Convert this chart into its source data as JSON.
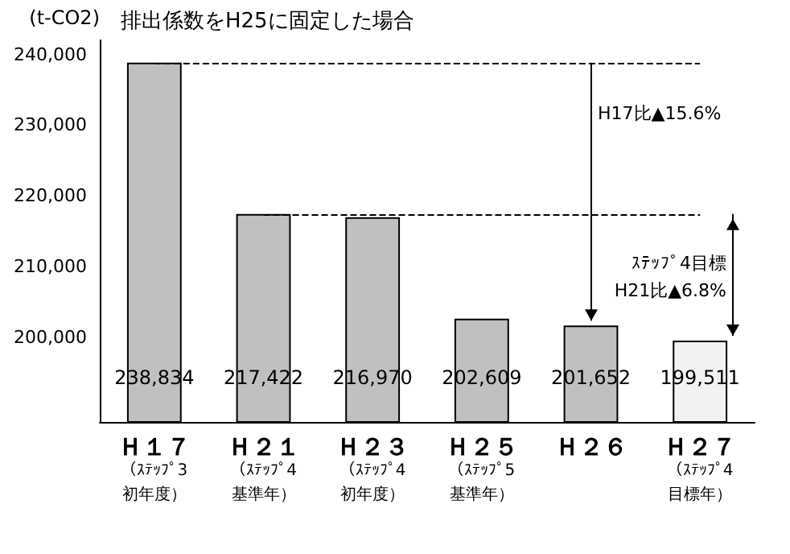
{
  "chart_data": {
    "type": "bar",
    "title": "排出係数をH25に固定した場合",
    "ylabel": "(t-CO2)",
    "categories": [
      "Ｈ１７（ｽﾃｯﾌﾟ3初年度）",
      "Ｈ２１（ｽﾃｯﾌﾟ4基準年）",
      "Ｈ２３（ｽﾃｯﾌﾟ4初年度）",
      "Ｈ２５（ｽﾃｯﾌﾟ5基準年）",
      "Ｈ２６",
      "Ｈ２７（ｽﾃｯﾌﾟ4目標年）"
    ],
    "values": [
      238834,
      217422,
      216970,
      202609,
      201652,
      199511
    ],
    "value_labels": [
      "238,834",
      "217,422",
      "216,970",
      "202,609",
      "201,652",
      "199,511"
    ],
    "colors": [
      "#c0c0c0",
      "#c0c0c0",
      "#c0c0c0",
      "#c0c0c0",
      "#c0c0c0",
      "#f2f2f2"
    ],
    "ylim": [
      188000,
      242000
    ],
    "yticks": [
      {
        "value": 200000,
        "label": "200,000"
      },
      {
        "value": 210000,
        "label": "210,000"
      },
      {
        "value": 220000,
        "label": "220,000"
      },
      {
        "value": 230000,
        "label": "230,000"
      },
      {
        "value": 240000,
        "label": "240,000"
      }
    ],
    "ref_lines": [
      {
        "axis": "y",
        "value": 238834,
        "line_style": "dashed",
        "color": "#000000"
      },
      {
        "axis": "y",
        "value": 217422,
        "line_style": "dashed",
        "color": "#000000"
      }
    ],
    "annotations": [
      "H17比▲15.6%",
      "ｽﾃｯﾌﾟ4目標\nH21比▲6.8%"
    ],
    "grid": false
  }
}
